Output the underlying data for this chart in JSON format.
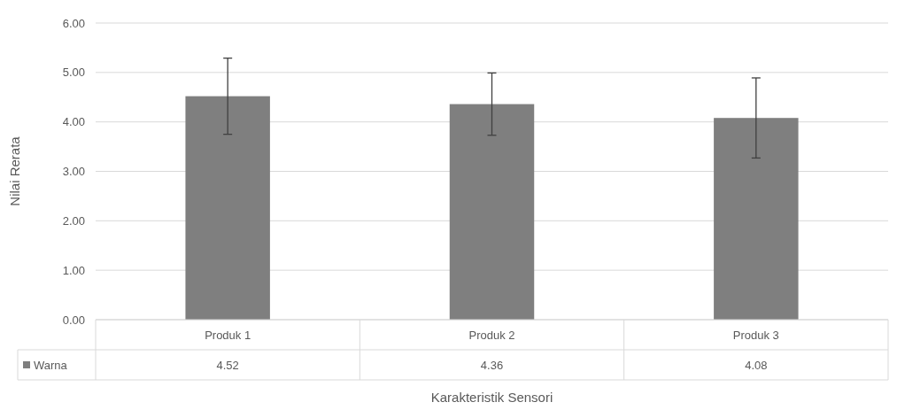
{
  "chart_data": {
    "type": "bar",
    "xlabel": "Karakteristik Sensori",
    "ylabel": "Nilai Rerata",
    "categories": [
      "Produk 1",
      "Produk 2",
      "Produk 3"
    ],
    "series": [
      {
        "name": "Warna",
        "color": "#7f7f7f",
        "values": [
          4.52,
          4.36,
          4.08
        ],
        "errors": [
          0.77,
          0.63,
          0.81
        ]
      }
    ],
    "ylim": [
      0,
      6
    ],
    "yticks": [
      {
        "value": 0,
        "label": "0.00"
      },
      {
        "value": 1,
        "label": "1.00"
      },
      {
        "value": 2,
        "label": "2.00"
      },
      {
        "value": 3,
        "label": "3.00"
      },
      {
        "value": 4,
        "label": "4.00"
      },
      {
        "value": 5,
        "label": "5.00"
      },
      {
        "value": 6,
        "label": "6.00"
      }
    ],
    "grid": "y",
    "legend": "bottom",
    "data_labels": true
  }
}
